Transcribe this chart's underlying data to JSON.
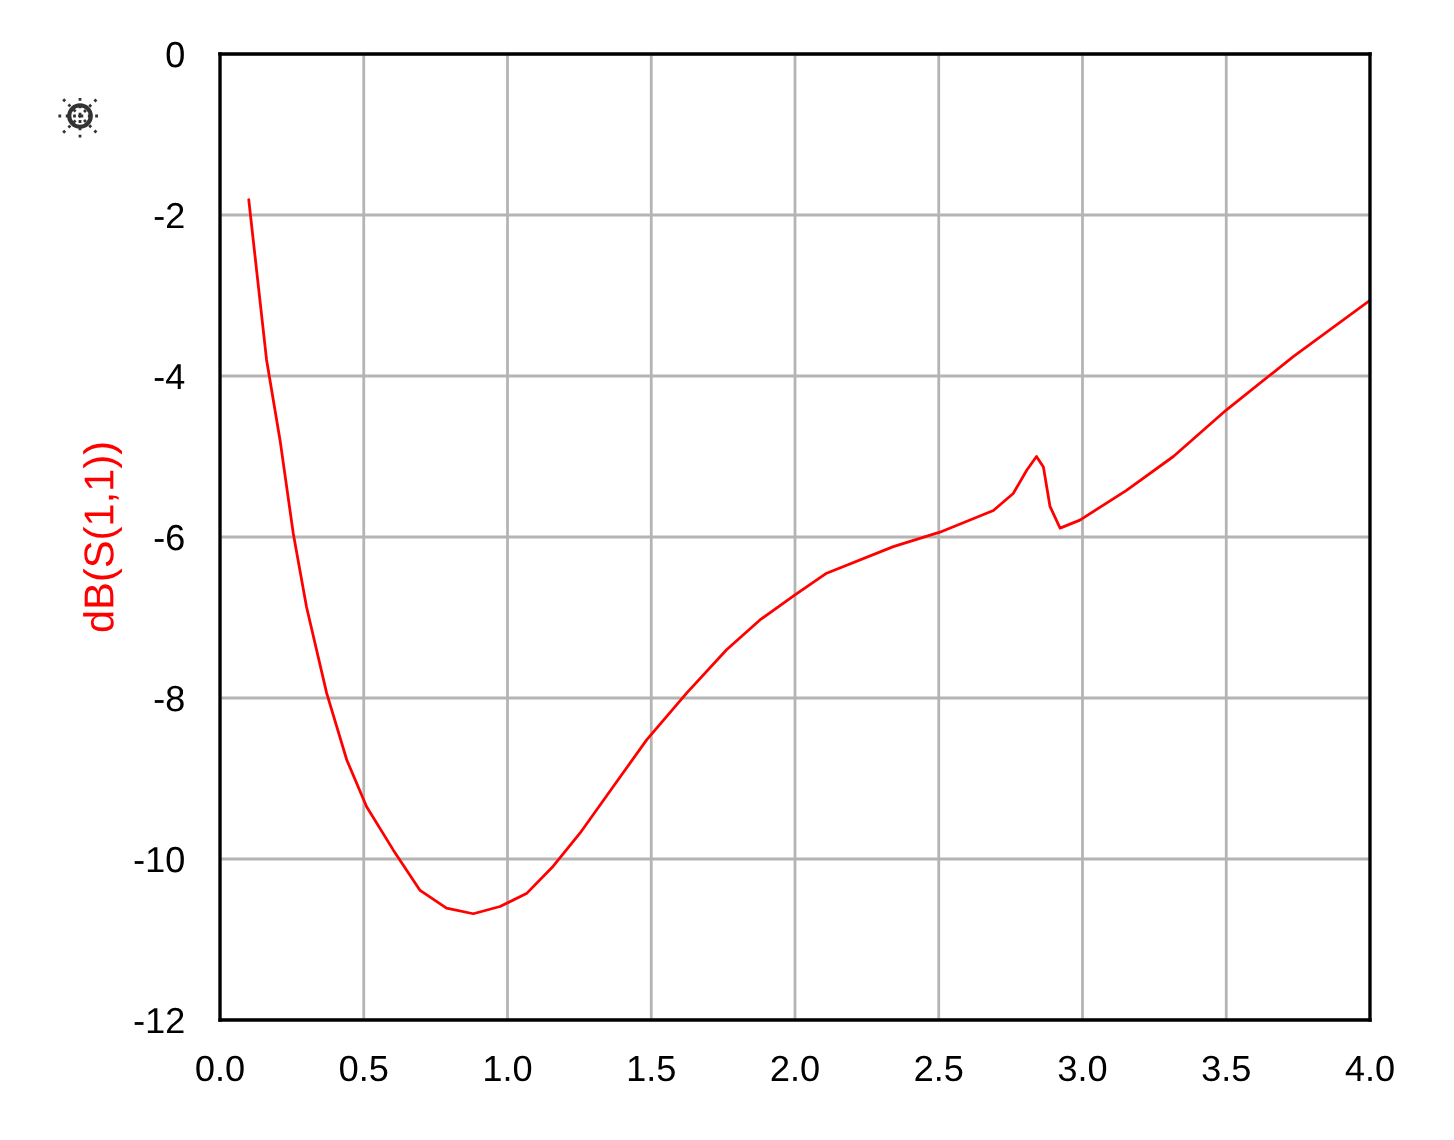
{
  "chart_data": {
    "type": "line",
    "ylabel": "dB(S(1,1))",
    "xlim": [
      0,
      4
    ],
    "ylim": [
      -12,
      0
    ],
    "xticks": [
      {
        "value": 0,
        "label": "0.0"
      },
      0.5,
      {
        "value": 1,
        "label": "1.0"
      },
      1.5,
      {
        "value": 2,
        "label": "2.0"
      },
      2.5,
      {
        "value": 3,
        "label": "3.0"
      },
      3.5,
      {
        "value": 4,
        "label": "4.0"
      }
    ],
    "yticks": [
      -12,
      -10,
      -8,
      -6,
      -4,
      -2,
      0
    ],
    "grid": true,
    "legend": false,
    "line_style": "solid",
    "marker": "none",
    "series": [
      {
        "color": "#ff0000",
        "x": [
          0.1,
          0.162,
          0.209,
          0.255,
          0.301,
          0.371,
          0.441,
          0.51,
          0.603,
          0.696,
          0.788,
          0.881,
          0.974,
          1.066,
          1.159,
          1.252,
          1.368,
          1.484,
          1.623,
          1.762,
          1.878,
          2.0,
          2.11,
          2.342,
          2.504,
          2.69,
          2.759,
          2.806,
          2.84,
          2.864,
          2.887,
          2.922,
          2.991,
          3.153,
          3.316,
          3.501,
          3.733,
          4.0
        ],
        "values": [
          -1.81,
          -3.8,
          -4.8,
          -5.96,
          -6.87,
          -7.94,
          -8.77,
          -9.35,
          -9.89,
          -10.39,
          -10.61,
          -10.68,
          -10.59,
          -10.43,
          -10.09,
          -9.68,
          -9.1,
          -8.52,
          -7.94,
          -7.4,
          -7.03,
          -6.72,
          -6.45,
          -6.12,
          -5.94,
          -5.67,
          -5.46,
          -5.17,
          -5.0,
          -5.13,
          -5.62,
          -5.89,
          -5.79,
          -5.42,
          -5.0,
          -4.42,
          -3.76,
          -3.06
        ]
      }
    ]
  }
}
